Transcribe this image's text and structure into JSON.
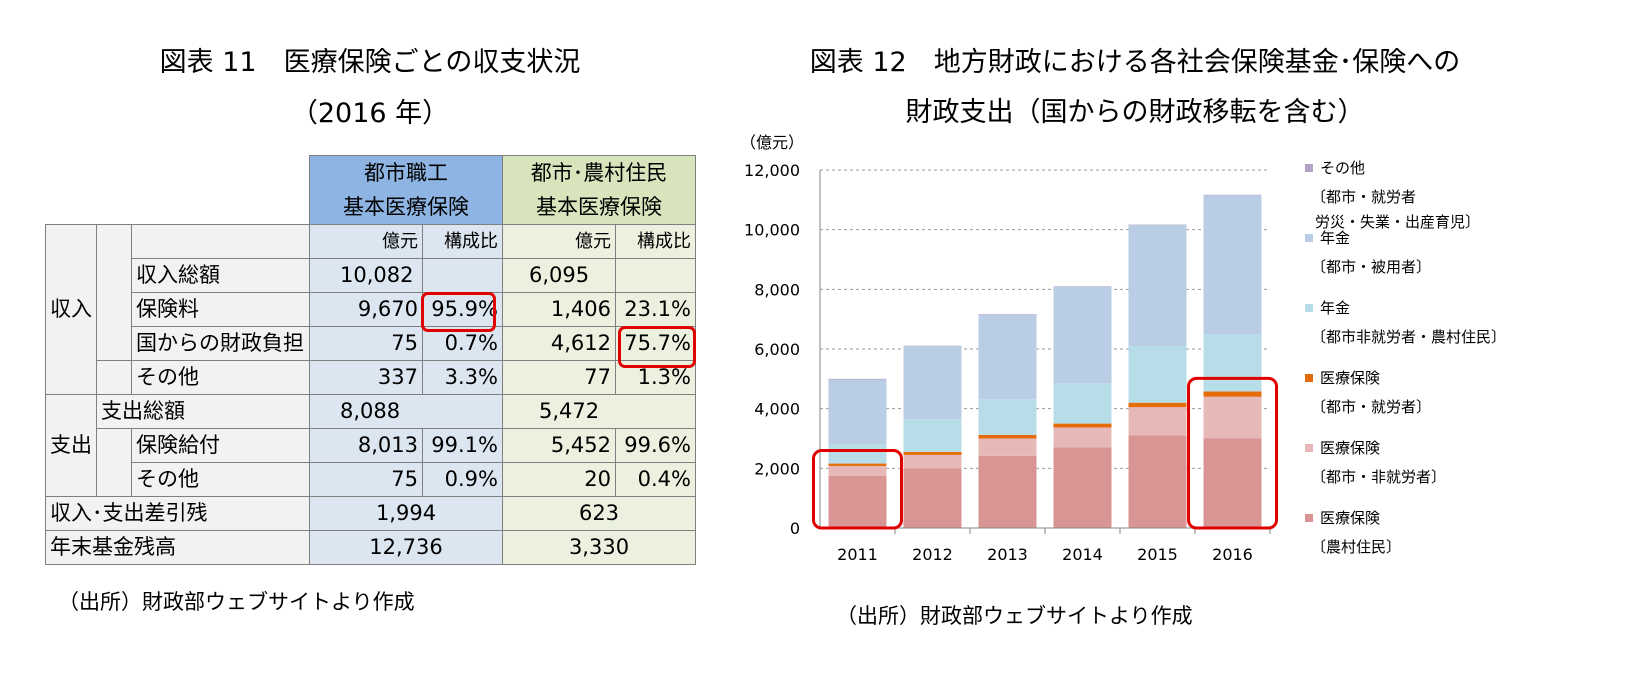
{
  "left": {
    "title_line1": "図表 11　医療保険ごとの収支状況",
    "title_line2": "（2016 年）",
    "source": "（出所）財政部ウェブサイトより作成",
    "col_headers": {
      "urban_line1": "都市職工",
      "urban_line2": "基本医療保険",
      "rural_line1": "都市･農村住民",
      "rural_line2": "基本医療保険"
    },
    "unit_labels": {
      "amount": "億元",
      "ratio": "構成比"
    },
    "group_labels": {
      "income": "収入",
      "expense": "支出"
    },
    "rows": {
      "income_total": {
        "label": "収入総額",
        "urban_amount": "10,082",
        "urban_ratio": "",
        "rural_amount": "6,095",
        "rural_ratio": ""
      },
      "premium": {
        "label": "保険料",
        "urban_amount": "9,670",
        "urban_ratio": "95.9%",
        "rural_amount": "1,406",
        "rural_ratio": "23.1%"
      },
      "govt": {
        "label": "国からの財政負担",
        "urban_amount": "75",
        "urban_ratio": "0.7%",
        "rural_amount": "4,612",
        "rural_ratio": "75.7%"
      },
      "income_other": {
        "label": "その他",
        "urban_amount": "337",
        "urban_ratio": "3.3%",
        "rural_amount": "77",
        "rural_ratio": "1.3%"
      },
      "expense_total": {
        "label": "支出総額",
        "urban_amount": "8,088",
        "rural_amount": "5,472"
      },
      "benefit": {
        "label": "保険給付",
        "urban_amount": "8,013",
        "urban_ratio": "99.1%",
        "rural_amount": "5,452",
        "rural_ratio": "99.6%"
      },
      "expense_other": {
        "label": "その他",
        "urban_amount": "75",
        "urban_ratio": "0.9%",
        "rural_amount": "20",
        "rural_ratio": "0.4%"
      },
      "balance": {
        "label": "収入･支出差引残",
        "urban_amount": "1,994",
        "rural_amount": "623"
      },
      "fund": {
        "label": "年末基金残高",
        "urban_amount": "12,736",
        "rural_amount": "3,330"
      }
    },
    "highlight_color": "#e00000"
  },
  "chart_data": {
    "type": "bar",
    "stacked": true,
    "title_line1": "図表 12　地方財政における各社会保険基金･保険への",
    "title_line2": "財政支出（国からの財政移転を含む）",
    "source": "（出所）財政部ウェブサイトより作成",
    "ylabel": "（億元）",
    "ylim": [
      0,
      12000
    ],
    "yticks": [
      0,
      2000,
      4000,
      6000,
      8000,
      10000,
      12000
    ],
    "ytick_labels": [
      "0",
      "2,000",
      "4,000",
      "6,000",
      "8,000",
      "10,000",
      "12,000"
    ],
    "grid": true,
    "legend_position": "right",
    "categories": [
      "2011",
      "2012",
      "2013",
      "2014",
      "2015",
      "2016"
    ],
    "series": [
      {
        "name": "医療保険〔農村住民〕",
        "legend_line1": "医療保険",
        "legend_line2": "〔農村住民〕",
        "color": "#d99594",
        "values": [
          1750,
          2000,
          2420,
          2700,
          3100,
          3000
        ]
      },
      {
        "name": "医療保険〔都市・非就労者〕",
        "legend_line1": "医療保険",
        "legend_line2": "〔都市・非就労者〕",
        "color": "#e6b9b8",
        "values": [
          330,
          450,
          580,
          670,
          950,
          1400
        ]
      },
      {
        "name": "医療保険〔都市・就労者〕",
        "legend_line1": "医療保険",
        "legend_line2": "〔都市・就労者〕",
        "color": "#e46c0a",
        "values": [
          80,
          100,
          120,
          130,
          150,
          180
        ]
      },
      {
        "name": "年金〔都市非就労者・農村住民〕",
        "legend_line1": "年金",
        "legend_line2": "〔都市非就労者・農村住民〕",
        "color": "#b7dee8",
        "values": [
          640,
          1100,
          1200,
          1350,
          1900,
          1920
        ]
      },
      {
        "name": "年金〔都市・被用者〕",
        "legend_line1": "年金",
        "legend_line2": "〔都市・被用者〕",
        "color": "#b9cde5",
        "values": [
          2170,
          2440,
          2830,
          3230,
          4050,
          4650
        ]
      },
      {
        "name": "その他〔都市・就労者労災・失業・出産育児〕",
        "legend_line1": "その他",
        "legend_line2": "〔都市・就労者",
        "legend_line3": "労災・失業・出産育児〕",
        "color": "#b3a2c7",
        "values": [
          30,
          20,
          20,
          20,
          20,
          20
        ]
      }
    ]
  }
}
